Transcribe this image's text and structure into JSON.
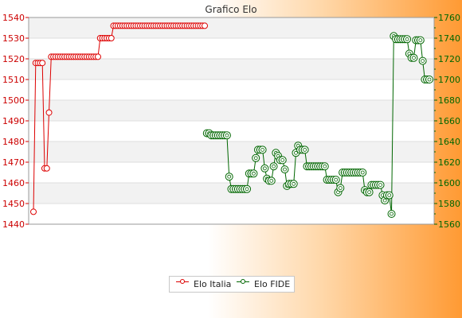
{
  "chart_data": {
    "type": "line",
    "title": "Grafico Elo",
    "xlabel": "",
    "ylabel": "",
    "ylim_left": [
      1440,
      1540
    ],
    "ylim_right": [
      1560,
      1760
    ],
    "yticks_left": [
      1440,
      1450,
      1460,
      1470,
      1480,
      1490,
      1500,
      1510,
      1520,
      1530,
      1540
    ],
    "yticks_right": [
      1560,
      1580,
      1600,
      1620,
      1640,
      1660,
      1680,
      1700,
      1720,
      1740,
      1760
    ],
    "grid": true,
    "legend_position": "bottom",
    "series": [
      {
        "name": "Elo Italia",
        "axis": "left",
        "color": "#dd0000",
        "values": [
          1446,
          1518,
          1518,
          1518,
          1518,
          1467,
          1467,
          1494,
          1521,
          1521,
          1521,
          1521,
          1521,
          1521,
          1521,
          1521,
          1521,
          1521,
          1521,
          1521,
          1521,
          1521,
          1521,
          1521,
          1521,
          1521,
          1521,
          1521,
          1521,
          1521,
          1530,
          1530,
          1530,
          1530,
          1530,
          1530,
          1536,
          1536,
          1536,
          1536,
          1536,
          1536,
          1536,
          1536,
          1536,
          1536,
          1536,
          1536,
          1536,
          1536,
          1536,
          1536,
          1536,
          1536,
          1536,
          1536,
          1536,
          1536,
          1536,
          1536,
          1536,
          1536,
          1536,
          1536,
          1536,
          1536,
          1536,
          1536,
          1536,
          1536,
          1536,
          1536,
          1536,
          1536,
          1536,
          1536,
          1536,
          1536
        ]
      },
      {
        "name": "Elo FIDE",
        "axis": "right",
        "color": "#006600",
        "start_index": 78,
        "values": [
          1648,
          1648,
          1646,
          1646,
          1646,
          1646,
          1646,
          1646,
          1646,
          1646,
          1606,
          1594,
          1594,
          1594,
          1594,
          1594,
          1594,
          1594,
          1594,
          1609,
          1609,
          1609,
          1624,
          1632,
          1632,
          1632,
          1614,
          1604,
          1602,
          1602,
          1616,
          1629,
          1626,
          1622,
          1622,
          1613,
          1597,
          1599,
          1599,
          1599,
          1629,
          1636,
          1632,
          1632,
          1632,
          1616,
          1616,
          1616,
          1616,
          1616,
          1616,
          1616,
          1616,
          1616,
          1603,
          1603,
          1603,
          1603,
          1603,
          1591,
          1595,
          1610,
          1610,
          1610,
          1610,
          1610,
          1610,
          1610,
          1610,
          1610,
          1610,
          1593,
          1591,
          1591,
          1598,
          1598,
          1598,
          1598,
          1598,
          1588,
          1583,
          1588,
          1588,
          1570,
          1742,
          1739,
          1739,
          1739,
          1739,
          1739,
          1739,
          1725,
          1721,
          1721,
          1738,
          1738,
          1738,
          1718,
          1700,
          1700,
          1700
        ]
      }
    ]
  }
}
